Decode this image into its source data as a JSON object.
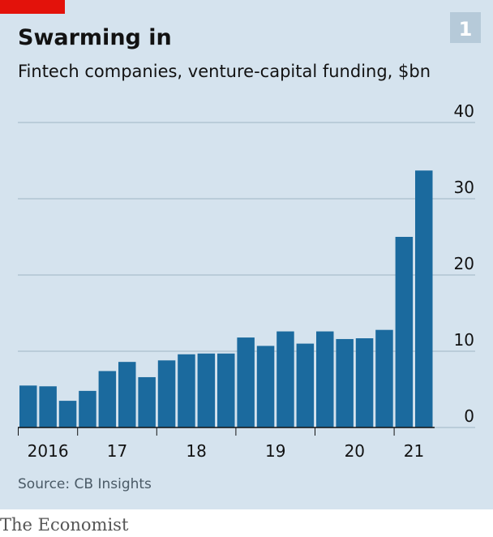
{
  "badge": "1",
  "footer": "The Economist",
  "chart_data": {
    "type": "bar",
    "title": "Swarming in",
    "subtitle": "Fintech companies, venture-capital funding, $bn",
    "source": "Source: CB Insights",
    "categories": [
      "2016",
      null,
      null,
      "17",
      null,
      null,
      null,
      "18",
      null,
      null,
      null,
      "19",
      null,
      null,
      null,
      "20",
      null,
      null,
      null,
      "21",
      null
    ],
    "values": [
      5.5,
      5.4,
      3.5,
      4.8,
      7.4,
      8.6,
      6.6,
      8.8,
      9.6,
      9.7,
      9.7,
      11.8,
      10.7,
      12.6,
      11.0,
      12.6,
      11.6,
      11.7,
      12.8,
      25.0,
      33.7
    ],
    "color": "#1b6a9e",
    "ylim": [
      0,
      40
    ],
    "yticks": [
      0,
      10,
      20,
      30,
      40
    ],
    "grid": true
  }
}
